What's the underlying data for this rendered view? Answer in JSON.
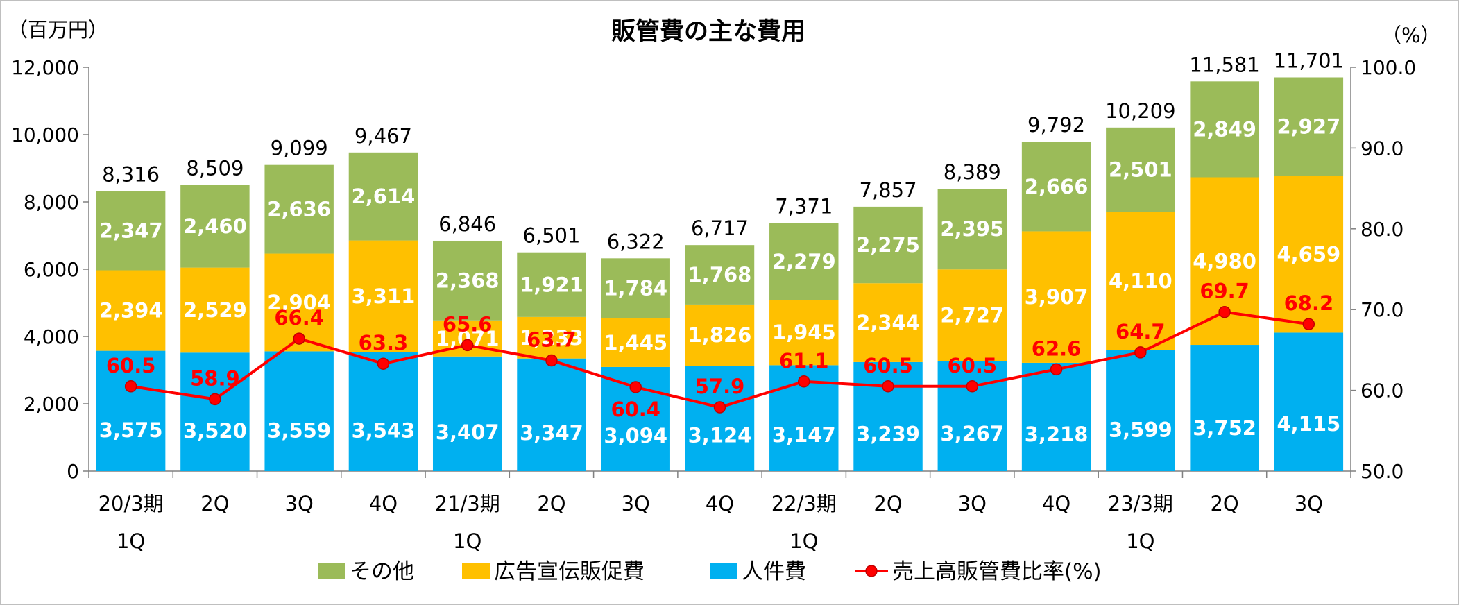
{
  "chart_data": {
    "type": "bar",
    "stacked": true,
    "title": "販管費の主な費用",
    "left_unit": "（百万円）",
    "right_unit": "（%）",
    "categories": [
      [
        "20/3期",
        "1Q"
      ],
      [
        "2Q"
      ],
      [
        "3Q"
      ],
      [
        "4Q"
      ],
      [
        "21/3期",
        "1Q"
      ],
      [
        "2Q"
      ],
      [
        "3Q"
      ],
      [
        "4Q"
      ],
      [
        "22/3期",
        "1Q"
      ],
      [
        "2Q"
      ],
      [
        "3Q"
      ],
      [
        "4Q"
      ],
      [
        "23/3期",
        "1Q"
      ],
      [
        "2Q"
      ],
      [
        "3Q"
      ]
    ],
    "series": [
      {
        "name": "人件費",
        "color": "#00b0f0",
        "values": [
          3575,
          3520,
          3559,
          3543,
          3407,
          3347,
          3094,
          3124,
          3147,
          3239,
          3267,
          3218,
          3599,
          3752,
          4115
        ]
      },
      {
        "name": "広告宣伝販促費",
        "color": "#ffc000",
        "values": [
          2394,
          2529,
          2904,
          3311,
          1071,
          1233,
          1445,
          1826,
          1945,
          2344,
          2727,
          3907,
          4110,
          4980,
          4659
        ]
      },
      {
        "name": "その他",
        "color": "#9bbb59",
        "values": [
          2347,
          2460,
          2636,
          2614,
          2368,
          1921,
          1784,
          1768,
          2279,
          2275,
          2395,
          2666,
          2501,
          2849,
          2927
        ]
      }
    ],
    "totals": [
      8316,
      8509,
      9099,
      9467,
      6846,
      6501,
      6322,
      6717,
      7371,
      7857,
      8389,
      9792,
      10209,
      11581,
      11701
    ],
    "line": {
      "name": "売上高販管費比率(%)",
      "color": "#ff0000",
      "axis": "right",
      "values": [
        60.5,
        58.9,
        66.4,
        63.3,
        65.6,
        63.7,
        60.4,
        57.9,
        61.1,
        60.5,
        60.5,
        62.6,
        64.7,
        69.7,
        68.2
      ]
    },
    "left_axis": {
      "min": 0,
      "max": 12000,
      "step": 2000
    },
    "right_axis": {
      "min": 50.0,
      "max": 100.0,
      "step": 10.0
    },
    "legend_order": [
      "その他",
      "広告宣伝販促費",
      "人件費",
      "売上高販管費比率(%)"
    ],
    "legend_position": "bottom",
    "grid": false
  }
}
